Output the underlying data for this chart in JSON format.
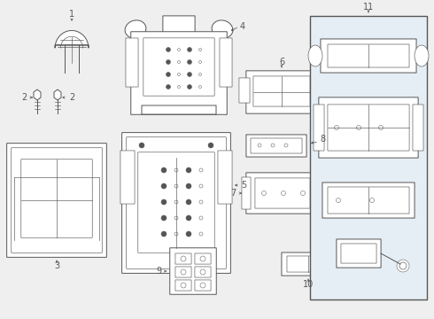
{
  "bg_color": "#efefef",
  "lc": "#555555",
  "lc2": "#888888",
  "white": "#ffffff",
  "box11_bg": "#ddeeff",
  "lw": 0.7,
  "lw2": 0.45,
  "fs": 7.0
}
